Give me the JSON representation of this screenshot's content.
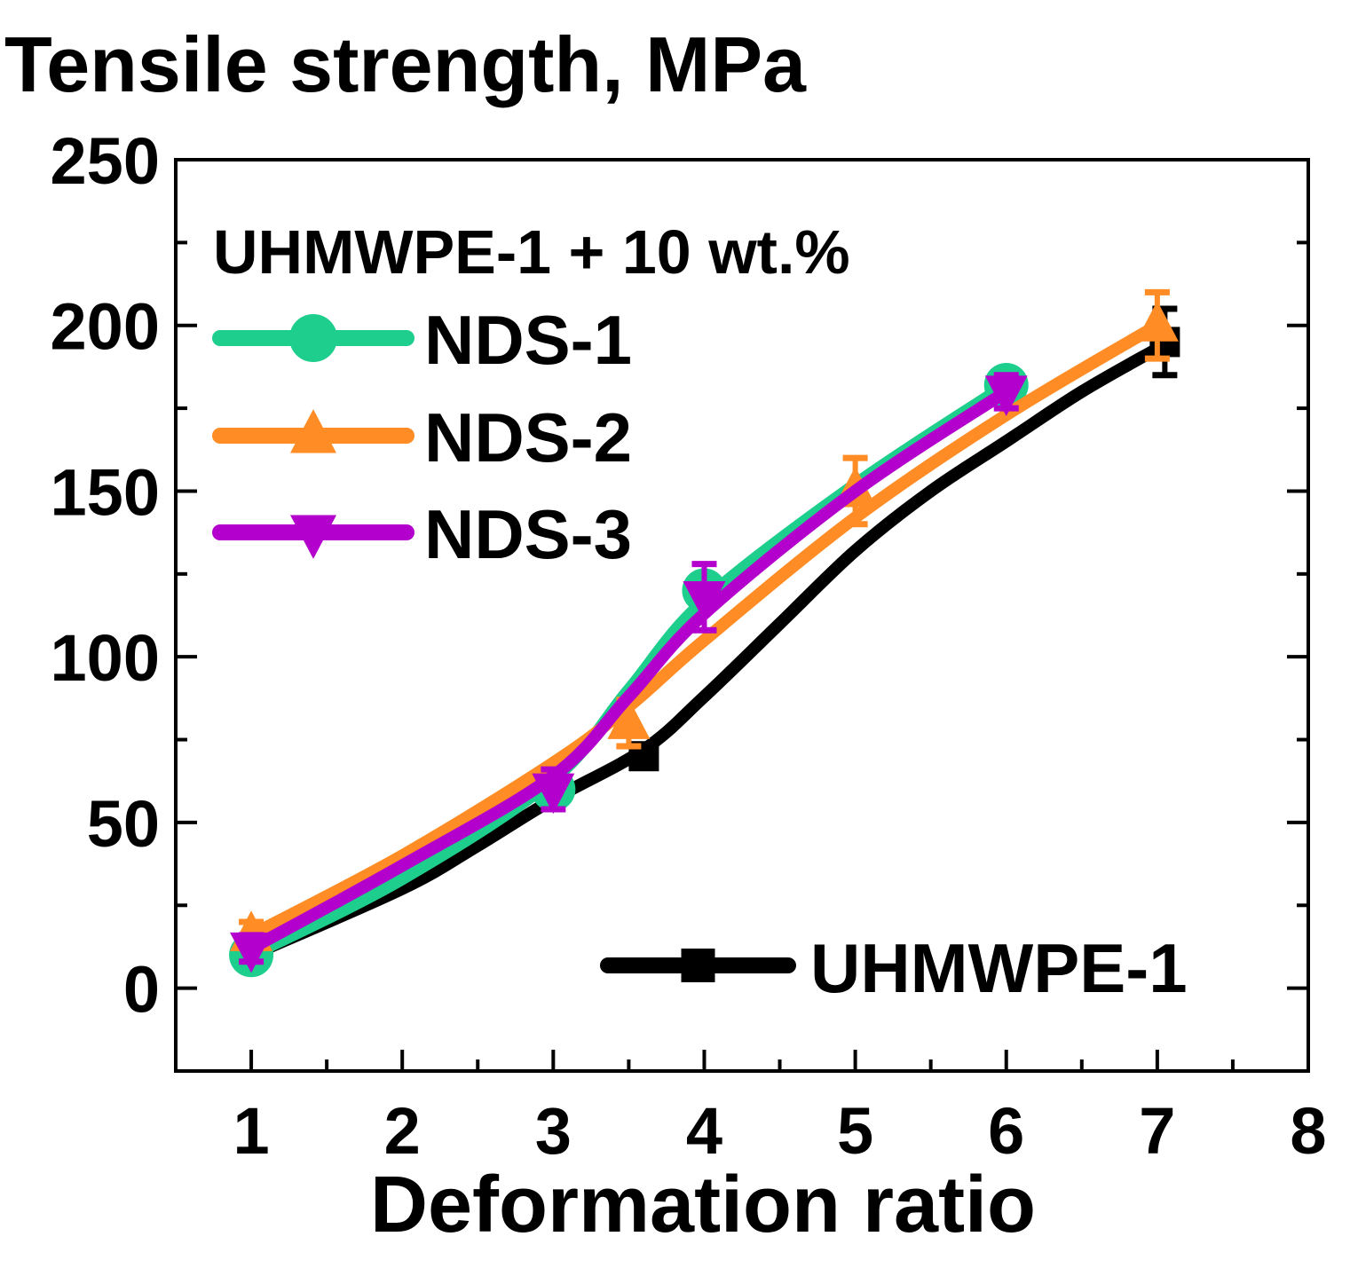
{
  "chart_data": {
    "type": "line",
    "title": "Tensile strength, MPa",
    "xlabel": "Deformation ratio",
    "ylabel": "",
    "xlim": [
      0.5,
      8
    ],
    "ylim": [
      -25,
      250
    ],
    "xticks": [
      1,
      2,
      3,
      4,
      5,
      6,
      7,
      8
    ],
    "yticks": [
      0,
      50,
      100,
      150,
      200,
      250
    ],
    "grid": false,
    "legend_title": "UHMWPE-1 + 10 wt.%",
    "series": [
      {
        "name": "UHMWPE-1",
        "color": "#000000",
        "marker": "square",
        "points": [
          {
            "x": 3.6,
            "y": 70,
            "err": 3
          },
          {
            "x": 7.05,
            "y": 195,
            "err": 10
          }
        ],
        "curve": [
          [
            1,
            10
          ],
          [
            2,
            30
          ],
          [
            2.5,
            43
          ],
          [
            3,
            57
          ],
          [
            3.6,
            72
          ],
          [
            4,
            88
          ],
          [
            4.5,
            110
          ],
          [
            5,
            132
          ],
          [
            5.5,
            150
          ],
          [
            6,
            165
          ],
          [
            6.5,
            180
          ],
          [
            7,
            193
          ]
        ]
      },
      {
        "name": "NDS-1",
        "color": "#1ECE8C",
        "marker": "circle",
        "points": [
          {
            "x": 1,
            "y": 10,
            "err": 0
          },
          {
            "x": 3,
            "y": 60,
            "err": 0
          },
          {
            "x": 4,
            "y": 120,
            "err": 0
          },
          {
            "x": 6,
            "y": 182,
            "err": 0
          }
        ],
        "curve": [
          [
            1,
            10
          ],
          [
            2,
            33
          ],
          [
            3,
            63
          ],
          [
            3.5,
            90
          ],
          [
            4,
            117
          ],
          [
            5,
            152
          ],
          [
            6,
            182
          ]
        ]
      },
      {
        "name": "NDS-2",
        "color": "#FF8C24",
        "marker": "triangle-up",
        "points": [
          {
            "x": 1,
            "y": 16,
            "err": 4
          },
          {
            "x": 3.5,
            "y": 80,
            "err": 7
          },
          {
            "x": 5,
            "y": 150,
            "err": 10
          },
          {
            "x": 7,
            "y": 200,
            "err": 10
          }
        ],
        "curve": [
          [
            1,
            16
          ],
          [
            2,
            40
          ],
          [
            3,
            68
          ],
          [
            3.5,
            85
          ],
          [
            4,
            105
          ],
          [
            5,
            142
          ],
          [
            6,
            173
          ],
          [
            7,
            200
          ]
        ]
      },
      {
        "name": "NDS-3",
        "color": "#B300CC",
        "marker": "triangle-down",
        "points": [
          {
            "x": 1,
            "y": 12,
            "err": 4
          },
          {
            "x": 3,
            "y": 60,
            "err": 6
          },
          {
            "x": 4,
            "y": 118,
            "err": 10
          },
          {
            "x": 6,
            "y": 180,
            "err": 5
          }
        ],
        "curve": [
          [
            1,
            12
          ],
          [
            2,
            37
          ],
          [
            3,
            64
          ],
          [
            3.5,
            88
          ],
          [
            4,
            113
          ],
          [
            5,
            150
          ],
          [
            6,
            180
          ]
        ]
      }
    ]
  }
}
